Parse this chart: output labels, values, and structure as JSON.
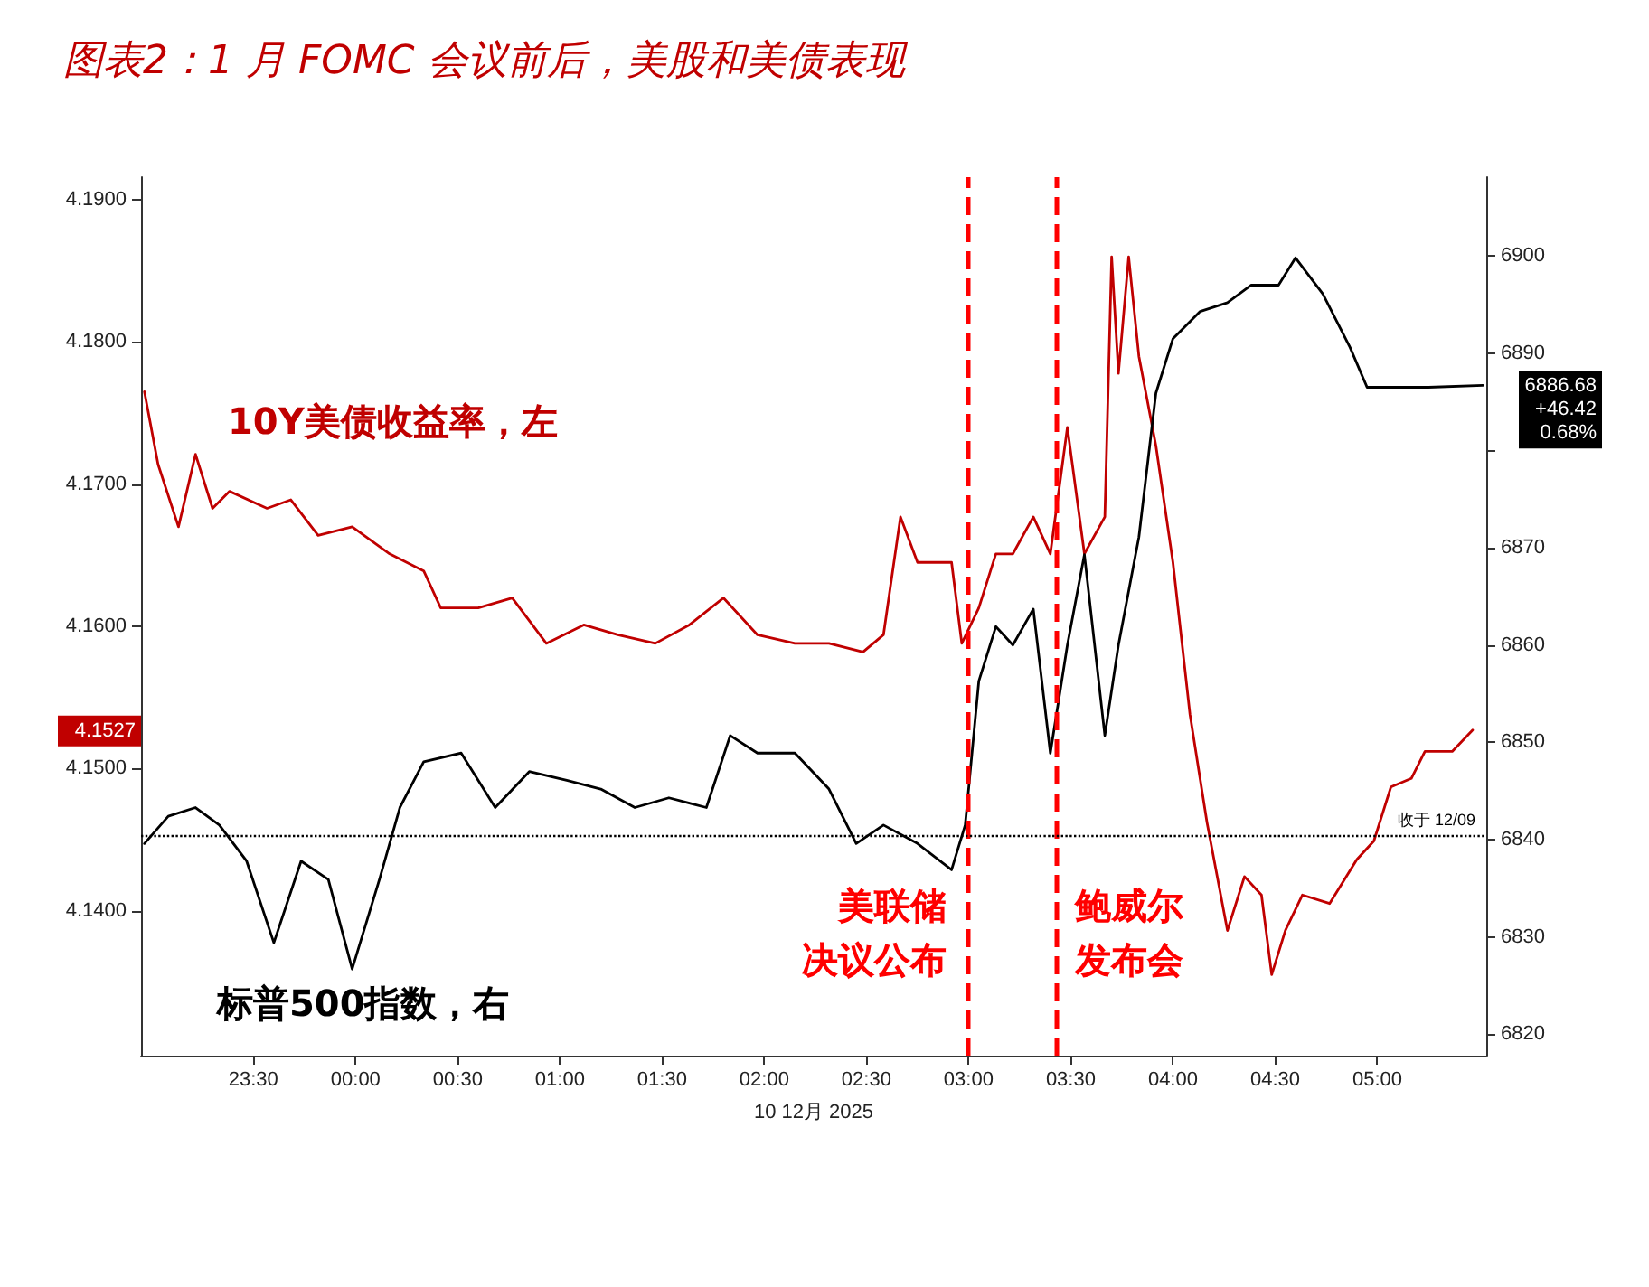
{
  "chart_data": {
    "type": "line",
    "title": "图表2：1 月 FOMC 会议前后，美股和美债表现",
    "xlabel": "10 12月 2025",
    "marker": "none",
    "line_style": "solid",
    "legend": false,
    "grid": false,
    "xlim": [
      "2025-12-09T22:57",
      "2025-12-10T05:32"
    ],
    "xticks": [
      {
        "value": "2025-12-09T23:30",
        "label": "23:30"
      },
      {
        "value": "2025-12-10T00:00",
        "label": "00:00"
      },
      {
        "value": "2025-12-10T00:30",
        "label": "00:30"
      },
      {
        "value": "2025-12-10T01:00",
        "label": "01:00"
      },
      {
        "value": "2025-12-10T01:30",
        "label": "01:30"
      },
      {
        "value": "2025-12-10T02:00",
        "label": "02:00"
      },
      {
        "value": "2025-12-10T02:30",
        "label": "02:30"
      },
      {
        "value": "2025-12-10T03:00",
        "label": "03:00"
      },
      {
        "value": "2025-12-10T03:30",
        "label": "03:30"
      },
      {
        "value": "2025-12-10T04:00",
        "label": "04:00"
      },
      {
        "value": "2025-12-10T04:30",
        "label": "04:30"
      },
      {
        "value": "2025-12-10T05:00",
        "label": "05:00"
      }
    ],
    "ylim": [
      4.1298,
      4.1916
    ],
    "yticks": [
      {
        "value": 4.14,
        "label": "4.1400"
      },
      {
        "value": 4.15,
        "label": "4.1500"
      },
      {
        "value": 4.16,
        "label": "4.1600"
      },
      {
        "value": 4.17,
        "label": "4.1700"
      },
      {
        "value": 4.18,
        "label": "4.1800"
      },
      {
        "value": 4.19,
        "label": "4.1900"
      }
    ],
    "y2lim": [
      6817.8,
      6908.1
    ],
    "y2ticks": [
      6820,
      6830,
      6840,
      6850,
      6860,
      6870,
      {
        "value": 6880,
        "label": null
      },
      6890,
      6900
    ],
    "series": [
      {
        "name": "10Y美债收益率，左",
        "color": "#c00000",
        "x": [
          "2025-12-09T22:58",
          "2025-12-09T23:02",
          "2025-12-09T23:08",
          "2025-12-09T23:13",
          "2025-12-09T23:18",
          "2025-12-09T23:23",
          "2025-12-09T23:34",
          "2025-12-09T23:41",
          "2025-12-09T23:49",
          "2025-12-09T23:59",
          "2025-12-10T00:10",
          "2025-12-10T00:20",
          "2025-12-10T00:25",
          "2025-12-10T00:36",
          "2025-12-10T00:46",
          "2025-12-10T00:56",
          "2025-12-10T01:07",
          "2025-12-10T01:17",
          "2025-12-10T01:28",
          "2025-12-10T01:38",
          "2025-12-10T01:48",
          "2025-12-10T01:58",
          "2025-12-10T02:09",
          "2025-12-10T02:19",
          "2025-12-10T02:29",
          "2025-12-10T02:35",
          "2025-12-10T02:40",
          "2025-12-10T02:45",
          "2025-12-10T02:55",
          "2025-12-10T02:58",
          "2025-12-10T03:03",
          "2025-12-10T03:08",
          "2025-12-10T03:13",
          "2025-12-10T03:19",
          "2025-12-10T03:24",
          "2025-12-10T03:29",
          "2025-12-10T03:34",
          "2025-12-10T03:40",
          "2025-12-10T03:42",
          "2025-12-10T03:44",
          "2025-12-10T03:47",
          "2025-12-10T03:50",
          "2025-12-10T03:55",
          "2025-12-10T04:00",
          "2025-12-10T04:05",
          "2025-12-10T04:10",
          "2025-12-10T04:16",
          "2025-12-10T04:21",
          "2025-12-10T04:26",
          "2025-12-10T04:29",
          "2025-12-10T04:33",
          "2025-12-10T04:38",
          "2025-12-10T04:46",
          "2025-12-10T04:54",
          "2025-12-10T04:59",
          "2025-12-10T05:04",
          "2025-12-10T05:10",
          "2025-12-10T05:14",
          "2025-12-10T05:22",
          "2025-12-10T05:28"
        ],
        "values": [
          4.1765,
          4.1714,
          4.167,
          4.1721,
          4.1683,
          4.1695,
          4.1683,
          4.1689,
          4.1664,
          4.167,
          4.1651,
          4.1639,
          4.1613,
          4.1613,
          4.162,
          4.1588,
          4.1601,
          4.1594,
          4.1588,
          4.1601,
          4.162,
          4.1594,
          4.1588,
          4.1588,
          4.1582,
          4.1594,
          4.1677,
          4.1645,
          4.1645,
          4.1588,
          4.1613,
          4.1651,
          4.1651,
          4.1677,
          4.1651,
          4.174,
          4.1651,
          4.1677,
          4.186,
          4.1778,
          4.186,
          4.179,
          4.1727,
          4.1645,
          4.1538,
          4.1462,
          4.1386,
          4.1424,
          4.1411,
          4.1355,
          4.1386,
          4.1411,
          4.1405,
          4.1436,
          4.1449,
          4.1487,
          4.1493,
          4.1512,
          4.1512,
          4.1527
        ]
      },
      {
        "name": "标普500指数，右",
        "color": "#000000",
        "axis": "y2",
        "x": [
          "2025-12-09T22:58",
          "2025-12-09T23:05",
          "2025-12-09T23:13",
          "2025-12-09T23:20",
          "2025-12-09T23:28",
          "2025-12-09T23:36",
          "2025-12-09T23:44",
          "2025-12-09T23:52",
          "2025-12-09T23:59",
          "2025-12-10T00:07",
          "2025-12-10T00:13",
          "2025-12-10T00:20",
          "2025-12-10T00:31",
          "2025-12-10T00:41",
          "2025-12-10T00:51",
          "2025-12-10T01:02",
          "2025-12-10T01:12",
          "2025-12-10T01:22",
          "2025-12-10T01:32",
          "2025-12-10T01:43",
          "2025-12-10T01:50",
          "2025-12-10T01:58",
          "2025-12-10T02:09",
          "2025-12-10T02:19",
          "2025-12-10T02:27",
          "2025-12-10T02:35",
          "2025-12-10T02:45",
          "2025-12-10T02:55",
          "2025-12-10T02:59",
          "2025-12-10T03:03",
          "2025-12-10T03:08",
          "2025-12-10T03:13",
          "2025-12-10T03:19",
          "2025-12-10T03:24",
          "2025-12-10T03:29",
          "2025-12-10T03:34",
          "2025-12-10T03:40",
          "2025-12-10T03:44",
          "2025-12-10T03:50",
          "2025-12-10T03:55",
          "2025-12-10T04:00",
          "2025-12-10T04:08",
          "2025-12-10T04:16",
          "2025-12-10T04:23",
          "2025-12-10T04:31",
          "2025-12-10T04:36",
          "2025-12-10T04:44",
          "2025-12-10T04:52",
          "2025-12-10T04:57",
          "2025-12-10T05:05",
          "2025-12-10T05:15",
          "2025-12-10T05:31"
        ],
        "values": [
          6839.6,
          6842.4,
          6843.3,
          6841.5,
          6837.8,
          6829.4,
          6837.8,
          6835.9,
          6826.7,
          6835.9,
          6843.3,
          6848,
          6848.9,
          6843.3,
          6847,
          6846.1,
          6845.2,
          6843.3,
          6844.3,
          6843.3,
          6850.7,
          6848.9,
          6848.9,
          6845.2,
          6839.6,
          6841.5,
          6839.6,
          6836.9,
          6841.5,
          6856.3,
          6861.9,
          6860,
          6863.7,
          6848.9,
          6860,
          6869.3,
          6850.7,
          6860,
          6871.1,
          6885.9,
          6891.5,
          6894.3,
          6895.2,
          6897,
          6897,
          6899.8,
          6896.1,
          6890.6,
          6886.5,
          6886.5,
          6886.5,
          6886.7
        ]
      }
    ],
    "ref_lines": [
      {
        "axis": "x",
        "value": "2025-12-10T03:00",
        "label": "美联储决议公布",
        "color": "#ff0000",
        "line_style": "dashed"
      },
      {
        "axis": "x",
        "value": "2025-12-10T03:26",
        "label": "鲍威尔发布会",
        "color": "#ff0000",
        "line_style": "dashed"
      },
      {
        "axis": "y2",
        "value": 6840.51,
        "label": "收于 12/09",
        "color": "#000000",
        "line_style": "dotted"
      }
    ],
    "annotations": [
      "4.1527",
      "6886.68\n+46.42\n0.68%"
    ]
  }
}
